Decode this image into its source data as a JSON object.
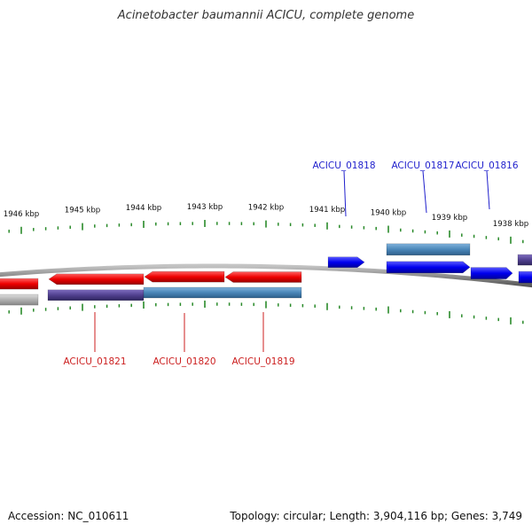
{
  "map": {
    "title": "Acinetobacter baumannii ACICU, complete genome",
    "accession_label": "Accession: NC_010611",
    "summary_label": "Topology: circular; Length: 3,904,116 bp; Genes: 3,749"
  },
  "colors": {
    "backbone": "#8c8c8c",
    "tick": "#2a8a2a",
    "forward_label": "#1f1fcc",
    "reverse_label": "#cc1f1f",
    "cds_forward": "#0000ee",
    "cds_reverse": "#ee0000",
    "gene_blue": "#4a86b8",
    "gene_purple": "#51418f",
    "gene_grey": "#b0b0b0"
  },
  "chart_data": {
    "type": "genome-map",
    "kbp_ticks": [
      {
        "label": "1946 kbp"
      },
      {
        "label": "1945 kbp"
      },
      {
        "label": "1944 kbp"
      },
      {
        "label": "1943 kbp"
      },
      {
        "label": "1942 kbp"
      },
      {
        "label": "1941 kbp"
      },
      {
        "label": "1940 kbp"
      },
      {
        "label": "1939 kbp"
      },
      {
        "label": "1938 kbp"
      }
    ],
    "forward_genes": [
      {
        "name": "ACICU_01818"
      },
      {
        "name": "ACICU_01817"
      },
      {
        "name": "ACICU_01816"
      }
    ],
    "reverse_genes": [
      {
        "name": "ACICU_01821"
      },
      {
        "name": "ACICU_01820"
      },
      {
        "name": "ACICU_01819"
      }
    ]
  }
}
